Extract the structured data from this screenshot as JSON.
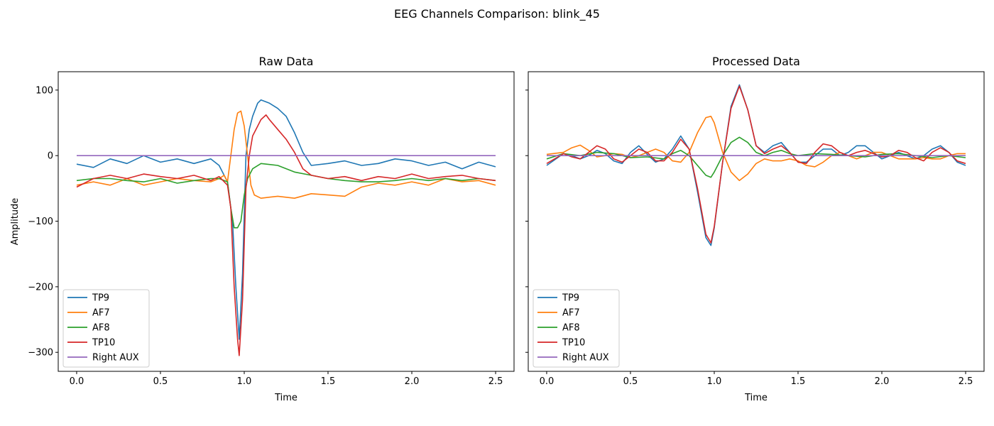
{
  "chart_data": {
    "type": "line",
    "title": "EEG Channels Comparison: blink_45",
    "series_colors": {
      "TP9": "#1f77b4",
      "AF7": "#ff7f0e",
      "AF8": "#2ca02c",
      "TP10": "#d62728",
      "Right AUX": "#9467bd"
    },
    "legend_position": "lower-left",
    "grid": false,
    "panels": [
      {
        "title": "Raw Data",
        "xlabel": "Time",
        "ylabel": "Amplitude",
        "xlim": [
          -0.11,
          2.61
        ],
        "ylim": [
          -329,
          128
        ],
        "xticks": [
          0.0,
          0.5,
          1.0,
          1.5,
          2.0,
          2.5
        ],
        "xtick_labels": [
          "0.0",
          "0.5",
          "1.0",
          "1.5",
          "2.0",
          "2.5"
        ],
        "yticks": [
          100,
          0,
          -100,
          -200,
          -300
        ],
        "ytick_labels": [
          "100",
          "0",
          "−100",
          "−200",
          "−300"
        ],
        "series": [
          {
            "name": "TP9",
            "x": [
              0.0,
              0.1,
              0.2,
              0.3,
              0.4,
              0.5,
              0.6,
              0.7,
              0.8,
              0.85,
              0.9,
              0.93,
              0.95,
              0.97,
              0.99,
              1.01,
              1.03,
              1.05,
              1.08,
              1.1,
              1.15,
              1.2,
              1.25,
              1.3,
              1.35,
              1.4,
              1.5,
              1.6,
              1.7,
              1.8,
              1.9,
              2.0,
              2.1,
              2.2,
              2.3,
              2.4,
              2.5
            ],
            "y": [
              -13,
              -18,
              -5,
              -12,
              0,
              -10,
              -5,
              -12,
              -5,
              -15,
              -40,
              -100,
              -200,
              -280,
              -180,
              0,
              40,
              60,
              80,
              85,
              80,
              72,
              60,
              35,
              5,
              -15,
              -12,
              -8,
              -15,
              -12,
              -5,
              -8,
              -15,
              -10,
              -20,
              -10,
              -17
            ]
          },
          {
            "name": "AF7",
            "x": [
              0.0,
              0.1,
              0.2,
              0.3,
              0.4,
              0.5,
              0.6,
              0.7,
              0.8,
              0.85,
              0.88,
              0.9,
              0.92,
              0.94,
              0.96,
              0.98,
              1.0,
              1.02,
              1.04,
              1.06,
              1.1,
              1.2,
              1.3,
              1.4,
              1.5,
              1.6,
              1.7,
              1.8,
              1.9,
              2.0,
              2.1,
              2.2,
              2.3,
              2.4,
              2.5
            ],
            "y": [
              -45,
              -40,
              -45,
              -35,
              -45,
              -40,
              -35,
              -38,
              -40,
              -35,
              -30,
              -40,
              0,
              40,
              65,
              68,
              45,
              0,
              -45,
              -60,
              -65,
              -62,
              -65,
              -58,
              -60,
              -62,
              -48,
              -42,
              -45,
              -40,
              -45,
              -35,
              -40,
              -38,
              -45
            ]
          },
          {
            "name": "AF8",
            "x": [
              0.0,
              0.1,
              0.2,
              0.3,
              0.4,
              0.5,
              0.6,
              0.7,
              0.8,
              0.85,
              0.9,
              0.92,
              0.94,
              0.96,
              0.98,
              1.0,
              1.02,
              1.05,
              1.1,
              1.2,
              1.3,
              1.4,
              1.5,
              1.6,
              1.7,
              1.8,
              1.9,
              2.0,
              2.1,
              2.2,
              2.3,
              2.4,
              2.5
            ],
            "y": [
              -38,
              -35,
              -35,
              -38,
              -40,
              -35,
              -42,
              -38,
              -35,
              -35,
              -40,
              -80,
              -110,
              -110,
              -100,
              -60,
              -35,
              -20,
              -12,
              -15,
              -25,
              -30,
              -35,
              -38,
              -40,
              -40,
              -38,
              -35,
              -38,
              -35,
              -38,
              -35,
              -38
            ]
          },
          {
            "name": "TP10",
            "x": [
              0.0,
              0.1,
              0.2,
              0.3,
              0.4,
              0.5,
              0.6,
              0.7,
              0.8,
              0.85,
              0.9,
              0.92,
              0.94,
              0.96,
              0.97,
              0.99,
              1.01,
              1.03,
              1.05,
              1.08,
              1.1,
              1.13,
              1.15,
              1.2,
              1.25,
              1.3,
              1.35,
              1.4,
              1.5,
              1.6,
              1.7,
              1.8,
              1.9,
              2.0,
              2.1,
              2.2,
              2.3,
              2.4,
              2.5
            ],
            "y": [
              -48,
              -35,
              -30,
              -35,
              -28,
              -32,
              -35,
              -30,
              -38,
              -32,
              -45,
              -80,
              -200,
              -280,
              -305,
              -220,
              -50,
              0,
              30,
              45,
              55,
              62,
              55,
              40,
              25,
              5,
              -20,
              -30,
              -35,
              -32,
              -38,
              -32,
              -35,
              -28,
              -35,
              -32,
              -30,
              -35,
              -38
            ]
          },
          {
            "name": "Right AUX",
            "x": [
              0.0,
              2.5
            ],
            "y": [
              0,
              0
            ]
          }
        ]
      },
      {
        "title": "Processed Data",
        "xlabel": "Time",
        "ylabel": "",
        "xlim": [
          -0.11,
          2.61
        ],
        "ylim": [
          -329,
          128
        ],
        "xticks": [
          0.0,
          0.5,
          1.0,
          1.5,
          2.0,
          2.5
        ],
        "xtick_labels": [
          "0.0",
          "0.5",
          "1.0",
          "1.5",
          "2.0",
          "2.5"
        ],
        "yticks": [
          100,
          0,
          -100,
          -200,
          -300
        ],
        "ytick_labels": [
          "",
          "",
          "",
          "",
          ""
        ],
        "series": [
          {
            "name": "TP9",
            "x": [
              0.0,
              0.1,
              0.15,
              0.2,
              0.25,
              0.3,
              0.35,
              0.4,
              0.45,
              0.5,
              0.55,
              0.6,
              0.65,
              0.7,
              0.75,
              0.8,
              0.85,
              0.9,
              0.95,
              0.98,
              1.0,
              1.05,
              1.1,
              1.15,
              1.2,
              1.25,
              1.3,
              1.35,
              1.4,
              1.45,
              1.5,
              1.55,
              1.6,
              1.65,
              1.7,
              1.75,
              1.8,
              1.85,
              1.9,
              1.95,
              2.0,
              2.05,
              2.1,
              2.15,
              2.2,
              2.25,
              2.3,
              2.35,
              2.4,
              2.45,
              2.5
            ],
            "y": [
              -15,
              3,
              0,
              -5,
              0,
              8,
              3,
              -8,
              -12,
              5,
              15,
              2,
              -10,
              -5,
              10,
              30,
              10,
              -55,
              -125,
              -137,
              -110,
              -10,
              75,
              108,
              70,
              15,
              5,
              15,
              20,
              5,
              -10,
              -10,
              0,
              10,
              10,
              0,
              5,
              15,
              15,
              5,
              -5,
              0,
              5,
              0,
              -5,
              0,
              10,
              15,
              5,
              -10,
              -15
            ]
          },
          {
            "name": "AF7",
            "x": [
              0.0,
              0.1,
              0.15,
              0.2,
              0.25,
              0.3,
              0.35,
              0.4,
              0.45,
              0.5,
              0.55,
              0.6,
              0.65,
              0.7,
              0.75,
              0.8,
              0.85,
              0.9,
              0.95,
              0.98,
              1.0,
              1.05,
              1.1,
              1.15,
              1.2,
              1.25,
              1.3,
              1.35,
              1.4,
              1.45,
              1.5,
              1.55,
              1.6,
              1.65,
              1.7,
              1.75,
              1.8,
              1.85,
              1.9,
              1.95,
              2.0,
              2.05,
              2.1,
              2.15,
              2.2,
              2.25,
              2.3,
              2.35,
              2.4,
              2.45,
              2.5
            ],
            "y": [
              2,
              5,
              12,
              16,
              8,
              -2,
              0,
              3,
              2,
              -3,
              0,
              5,
              10,
              5,
              -8,
              -10,
              5,
              35,
              58,
              60,
              50,
              5,
              -25,
              -38,
              -28,
              -12,
              -5,
              -8,
              -8,
              -5,
              -8,
              -15,
              -17,
              -10,
              0,
              5,
              0,
              -5,
              0,
              5,
              5,
              0,
              -5,
              -5,
              -5,
              -3,
              -5,
              -5,
              0,
              3,
              3
            ]
          },
          {
            "name": "AF8",
            "x": [
              0.0,
              0.1,
              0.2,
              0.3,
              0.4,
              0.5,
              0.6,
              0.7,
              0.75,
              0.8,
              0.85,
              0.9,
              0.95,
              0.98,
              1.0,
              1.05,
              1.1,
              1.15,
              1.2,
              1.25,
              1.3,
              1.35,
              1.4,
              1.45,
              1.5,
              1.6,
              1.7,
              1.8,
              1.9,
              2.0,
              2.1,
              2.2,
              2.3,
              2.4,
              2.5
            ],
            "y": [
              -5,
              3,
              0,
              5,
              3,
              -3,
              -2,
              -5,
              3,
              8,
              0,
              -15,
              -30,
              -33,
              -25,
              0,
              20,
              28,
              20,
              5,
              0,
              5,
              8,
              3,
              0,
              3,
              2,
              0,
              -2,
              2,
              3,
              0,
              -3,
              0,
              -3
            ]
          },
          {
            "name": "TP10",
            "x": [
              0.0,
              0.1,
              0.15,
              0.2,
              0.25,
              0.3,
              0.35,
              0.4,
              0.45,
              0.5,
              0.55,
              0.6,
              0.65,
              0.7,
              0.75,
              0.8,
              0.85,
              0.9,
              0.95,
              0.98,
              1.0,
              1.05,
              1.1,
              1.15,
              1.2,
              1.25,
              1.3,
              1.35,
              1.4,
              1.45,
              1.5,
              1.55,
              1.6,
              1.65,
              1.7,
              1.75,
              1.8,
              1.85,
              1.9,
              1.95,
              2.0,
              2.05,
              2.1,
              2.15,
              2.2,
              2.25,
              2.3,
              2.35,
              2.4,
              2.45,
              2.5
            ],
            "y": [
              -12,
              3,
              -2,
              -5,
              5,
              15,
              10,
              -5,
              -10,
              0,
              10,
              5,
              -8,
              -8,
              5,
              25,
              10,
              -50,
              -120,
              -133,
              -108,
              -10,
              72,
              106,
              70,
              15,
              3,
              10,
              15,
              5,
              -10,
              -12,
              5,
              18,
              15,
              5,
              0,
              5,
              8,
              3,
              -2,
              0,
              8,
              5,
              -3,
              -8,
              5,
              12,
              5,
              -8,
              -12
            ]
          },
          {
            "name": "Right AUX",
            "x": [
              0.0,
              2.5
            ],
            "y": [
              0,
              0
            ]
          }
        ]
      }
    ]
  }
}
